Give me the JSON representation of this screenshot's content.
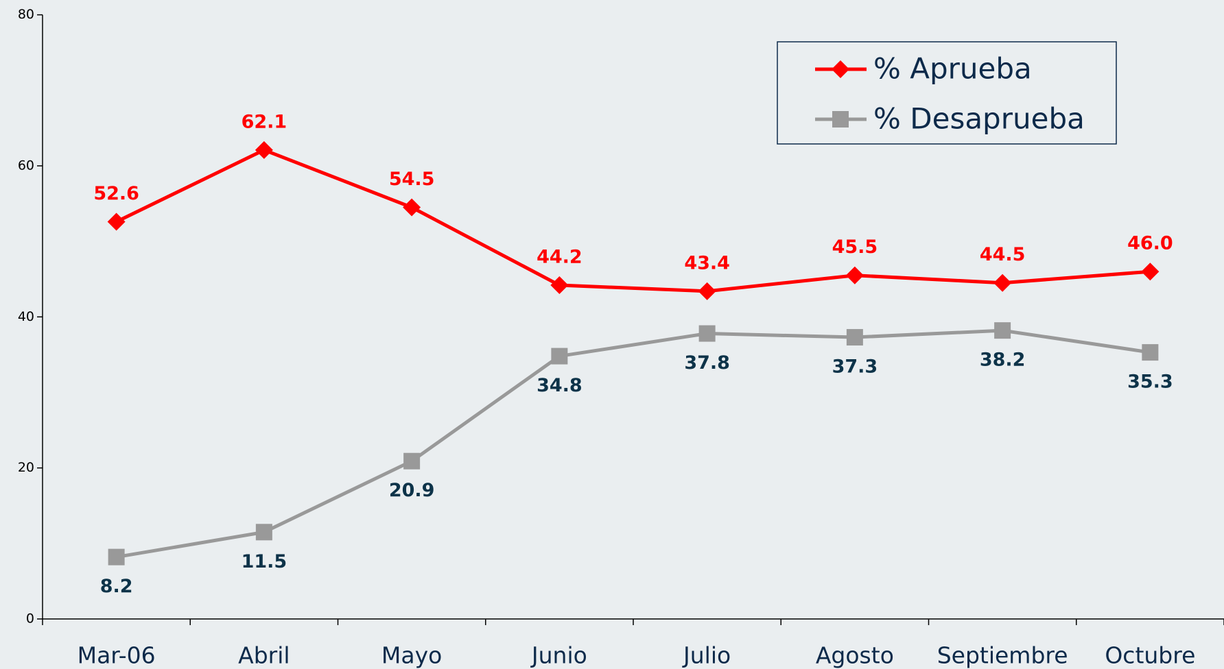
{
  "chart_data": {
    "type": "line",
    "categories": [
      "Mar-06",
      "Abril",
      "Mayo",
      "Junio",
      "Julio",
      "Agosto",
      "Septiembre",
      "Octubre"
    ],
    "series": [
      {
        "name": "% Aprueba",
        "color": "#ff0000",
        "label_color": "#ff0000",
        "values": [
          52.6,
          62.1,
          54.5,
          44.2,
          43.4,
          45.5,
          44.5,
          46.0
        ],
        "value_labels": [
          "52.6",
          "62.1",
          "54.5",
          "44.2",
          "43.4",
          "45.5",
          "44.5",
          "46.0"
        ]
      },
      {
        "name": "% Desaprueba",
        "color": "#999999",
        "label_color": "#0d3349",
        "values": [
          8.2,
          11.5,
          20.9,
          34.8,
          37.8,
          37.3,
          38.2,
          35.3
        ],
        "value_labels": [
          "8.2",
          "11.5",
          "20.9",
          "34.8",
          "37.8",
          "37.3",
          "38.2",
          "35.3"
        ]
      }
    ],
    "ylim": [
      0,
      80
    ],
    "yticks": [
      0,
      20,
      40,
      60,
      80
    ],
    "grid": false,
    "legend": "top-right"
  }
}
